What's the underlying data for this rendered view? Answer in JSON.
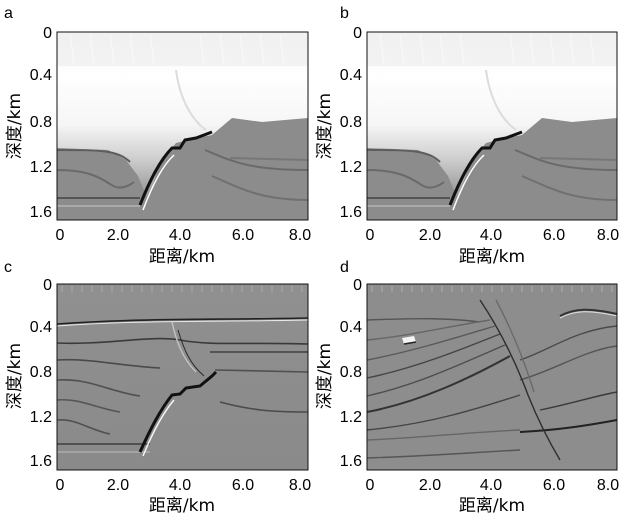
{
  "figure": {
    "panels": [
      {
        "label": "a",
        "xlabel": "距离/km",
        "ylabel": "深度/km",
        "xticks": [
          "0",
          "2.0",
          "4.0",
          "6.0",
          "8.0"
        ],
        "yticks": [
          "0",
          "0.4",
          "0.8",
          "1.2",
          "1.6"
        ]
      },
      {
        "label": "b",
        "xlabel": "距离/km",
        "ylabel": "深度/km",
        "xticks": [
          "0",
          "2.0",
          "4.0",
          "6.0",
          "8.0"
        ],
        "yticks": [
          "0",
          "0.4",
          "0.8",
          "1.2",
          "1.6"
        ]
      },
      {
        "label": "c",
        "xlabel": "距离/km",
        "ylabel": "深度/km",
        "xticks": [
          "0",
          "2.0",
          "4.0",
          "6.0",
          "8.0"
        ],
        "yticks": [
          "0",
          "0.4",
          "0.8",
          "1.2",
          "1.6"
        ]
      },
      {
        "label": "d",
        "xlabel": "距离/km",
        "ylabel": "深度/km",
        "xticks": [
          "0",
          "2.0",
          "4.0",
          "6.0",
          "8.0"
        ],
        "yticks": [
          "0",
          "0.4",
          "0.8",
          "1.2",
          "1.6"
        ]
      }
    ]
  },
  "colors": {
    "background": "#ffffff",
    "text": "#111111",
    "image_gray": "#8a8a8a"
  }
}
